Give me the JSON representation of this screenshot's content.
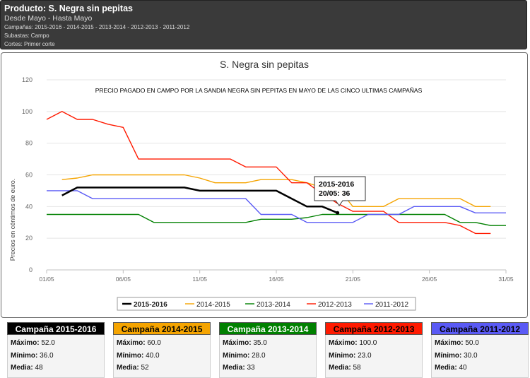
{
  "header": {
    "title": "Producto: S. Negra sin pepitas",
    "period": "Desde Mayo - Hasta Mayo",
    "campaigns": "Campañas: 2015-2016 - 2014-2015 - 2013-2014 - 2012-2013 - 2011-2012",
    "auctions": "Subastas: Campo",
    "cuts": "Cortes: Primer corte"
  },
  "chart_data": {
    "type": "line",
    "title": "S. Negra sin pepitas",
    "subtitle": "PRECIO PAGADO EN CAMPO POR LA SANDIA NEGRA SIN PEPITAS EN MAYO DE LAS CINCO ULTIMAS CAMPAÑAS",
    "ylabel": "Precios en céntimos de euro.",
    "xlabel": "",
    "ylim": [
      0,
      120
    ],
    "yticks": [
      "0",
      "20",
      "40",
      "60",
      "80",
      "100",
      "120"
    ],
    "xticks": [
      "01/05",
      "06/05",
      "11/05",
      "16/05",
      "21/05",
      "26/05",
      "31/05"
    ],
    "grid": "horizontal",
    "legend_position": "bottom",
    "series": [
      {
        "name": "2015-2016",
        "color": "#000000",
        "x": [
          2,
          3,
          4,
          5,
          6,
          7,
          8,
          9,
          10,
          11,
          12,
          13,
          14,
          15,
          16,
          17,
          18,
          19,
          20
        ],
        "values": [
          47,
          52,
          52,
          52,
          52,
          52,
          52,
          52,
          52,
          50,
          50,
          50,
          50,
          50,
          50,
          45,
          40,
          40,
          36
        ]
      },
      {
        "name": "2014-2015",
        "color": "#f5a400",
        "x": [
          2,
          3,
          4,
          5,
          6,
          7,
          8,
          9,
          10,
          11,
          12,
          13,
          14,
          15,
          16,
          17,
          18,
          19,
          20,
          21,
          22,
          23,
          24,
          25,
          26,
          27,
          28,
          29,
          30
        ],
        "values": [
          57,
          58,
          60,
          60,
          60,
          60,
          60,
          60,
          60,
          58,
          55,
          55,
          55,
          57,
          57,
          57,
          55,
          52,
          52,
          40,
          40,
          40,
          45,
          45,
          45,
          45,
          45,
          40,
          40
        ]
      },
      {
        "name": "2013-2014",
        "color": "#008000",
        "x": [
          1,
          2,
          3,
          4,
          5,
          6,
          7,
          8,
          9,
          10,
          11,
          12,
          13,
          14,
          15,
          16,
          17,
          18,
          19,
          20,
          21,
          22,
          23,
          24,
          25,
          26,
          27,
          28,
          29,
          30,
          31
        ],
        "values": [
          35,
          35,
          35,
          35,
          35,
          35,
          35,
          30,
          30,
          30,
          30,
          30,
          30,
          30,
          32,
          32,
          32,
          33,
          35,
          35,
          35,
          35,
          35,
          35,
          35,
          35,
          35,
          30,
          30,
          28,
          28
        ]
      },
      {
        "name": "2012-2013",
        "color": "#ff1a00",
        "x": [
          1,
          2,
          3,
          4,
          5,
          6,
          7,
          8,
          9,
          10,
          11,
          12,
          13,
          14,
          15,
          16,
          17,
          18,
          19,
          20,
          21,
          22,
          23,
          24,
          25,
          26,
          27,
          28,
          29,
          30
        ],
        "values": [
          95,
          100,
          95,
          95,
          92,
          90,
          70,
          70,
          70,
          70,
          70,
          70,
          70,
          65,
          65,
          65,
          55,
          55,
          48,
          42,
          37,
          37,
          37,
          30,
          30,
          30,
          30,
          28,
          23,
          23
        ]
      },
      {
        "name": "2011-2012",
        "color": "#5a5af5",
        "x": [
          1,
          2,
          3,
          4,
          5,
          6,
          7,
          8,
          9,
          10,
          11,
          12,
          13,
          14,
          15,
          16,
          17,
          18,
          19,
          20,
          21,
          22,
          23,
          24,
          25,
          26,
          27,
          28,
          29,
          30,
          31
        ],
        "values": [
          50,
          50,
          50,
          45,
          45,
          45,
          45,
          45,
          45,
          45,
          45,
          45,
          45,
          45,
          35,
          35,
          35,
          30,
          30,
          30,
          30,
          35,
          35,
          35,
          40,
          40,
          40,
          40,
          36,
          36,
          36
        ]
      }
    ],
    "tooltip": {
      "series": "2015-2016",
      "date": "20/05",
      "value": "36",
      "line1": "2015-2016",
      "line2": "20/05: 36"
    }
  },
  "cards": [
    {
      "title": "Campaña 2015-2016",
      "header_bg": "#000000",
      "header_fg": "#ffffff",
      "max_label": "Máximo:",
      "max": "52.0",
      "min_label": "Mínimo:",
      "min": "36.0",
      "avg_label": "Media:",
      "avg": "48"
    },
    {
      "title": "Campaña 2014-2015",
      "header_bg": "#f5a400",
      "header_fg": "#000000",
      "max_label": "Máximo:",
      "max": "60.0",
      "min_label": "Mínimo:",
      "min": "40.0",
      "avg_label": "Media:",
      "avg": "52"
    },
    {
      "title": "Campaña 2013-2014",
      "header_bg": "#008000",
      "header_fg": "#ffffff",
      "max_label": "Máximo:",
      "max": "35.0",
      "min_label": "Mínimo:",
      "min": "28.0",
      "avg_label": "Media:",
      "avg": "33"
    },
    {
      "title": "Campaña 2012-2013",
      "header_bg": "#ff1a00",
      "header_fg": "#000000",
      "max_label": "Máximo:",
      "max": "100.0",
      "min_label": "Mínimo:",
      "min": "23.0",
      "avg_label": "Media:",
      "avg": "58"
    },
    {
      "title": "Campaña 2011-2012",
      "header_bg": "#5a5af5",
      "header_fg": "#000000",
      "max_label": "Máximo:",
      "max": "50.0",
      "min_label": "Mínimo:",
      "min": "30.0",
      "avg_label": "Media:",
      "avg": "40"
    }
  ]
}
